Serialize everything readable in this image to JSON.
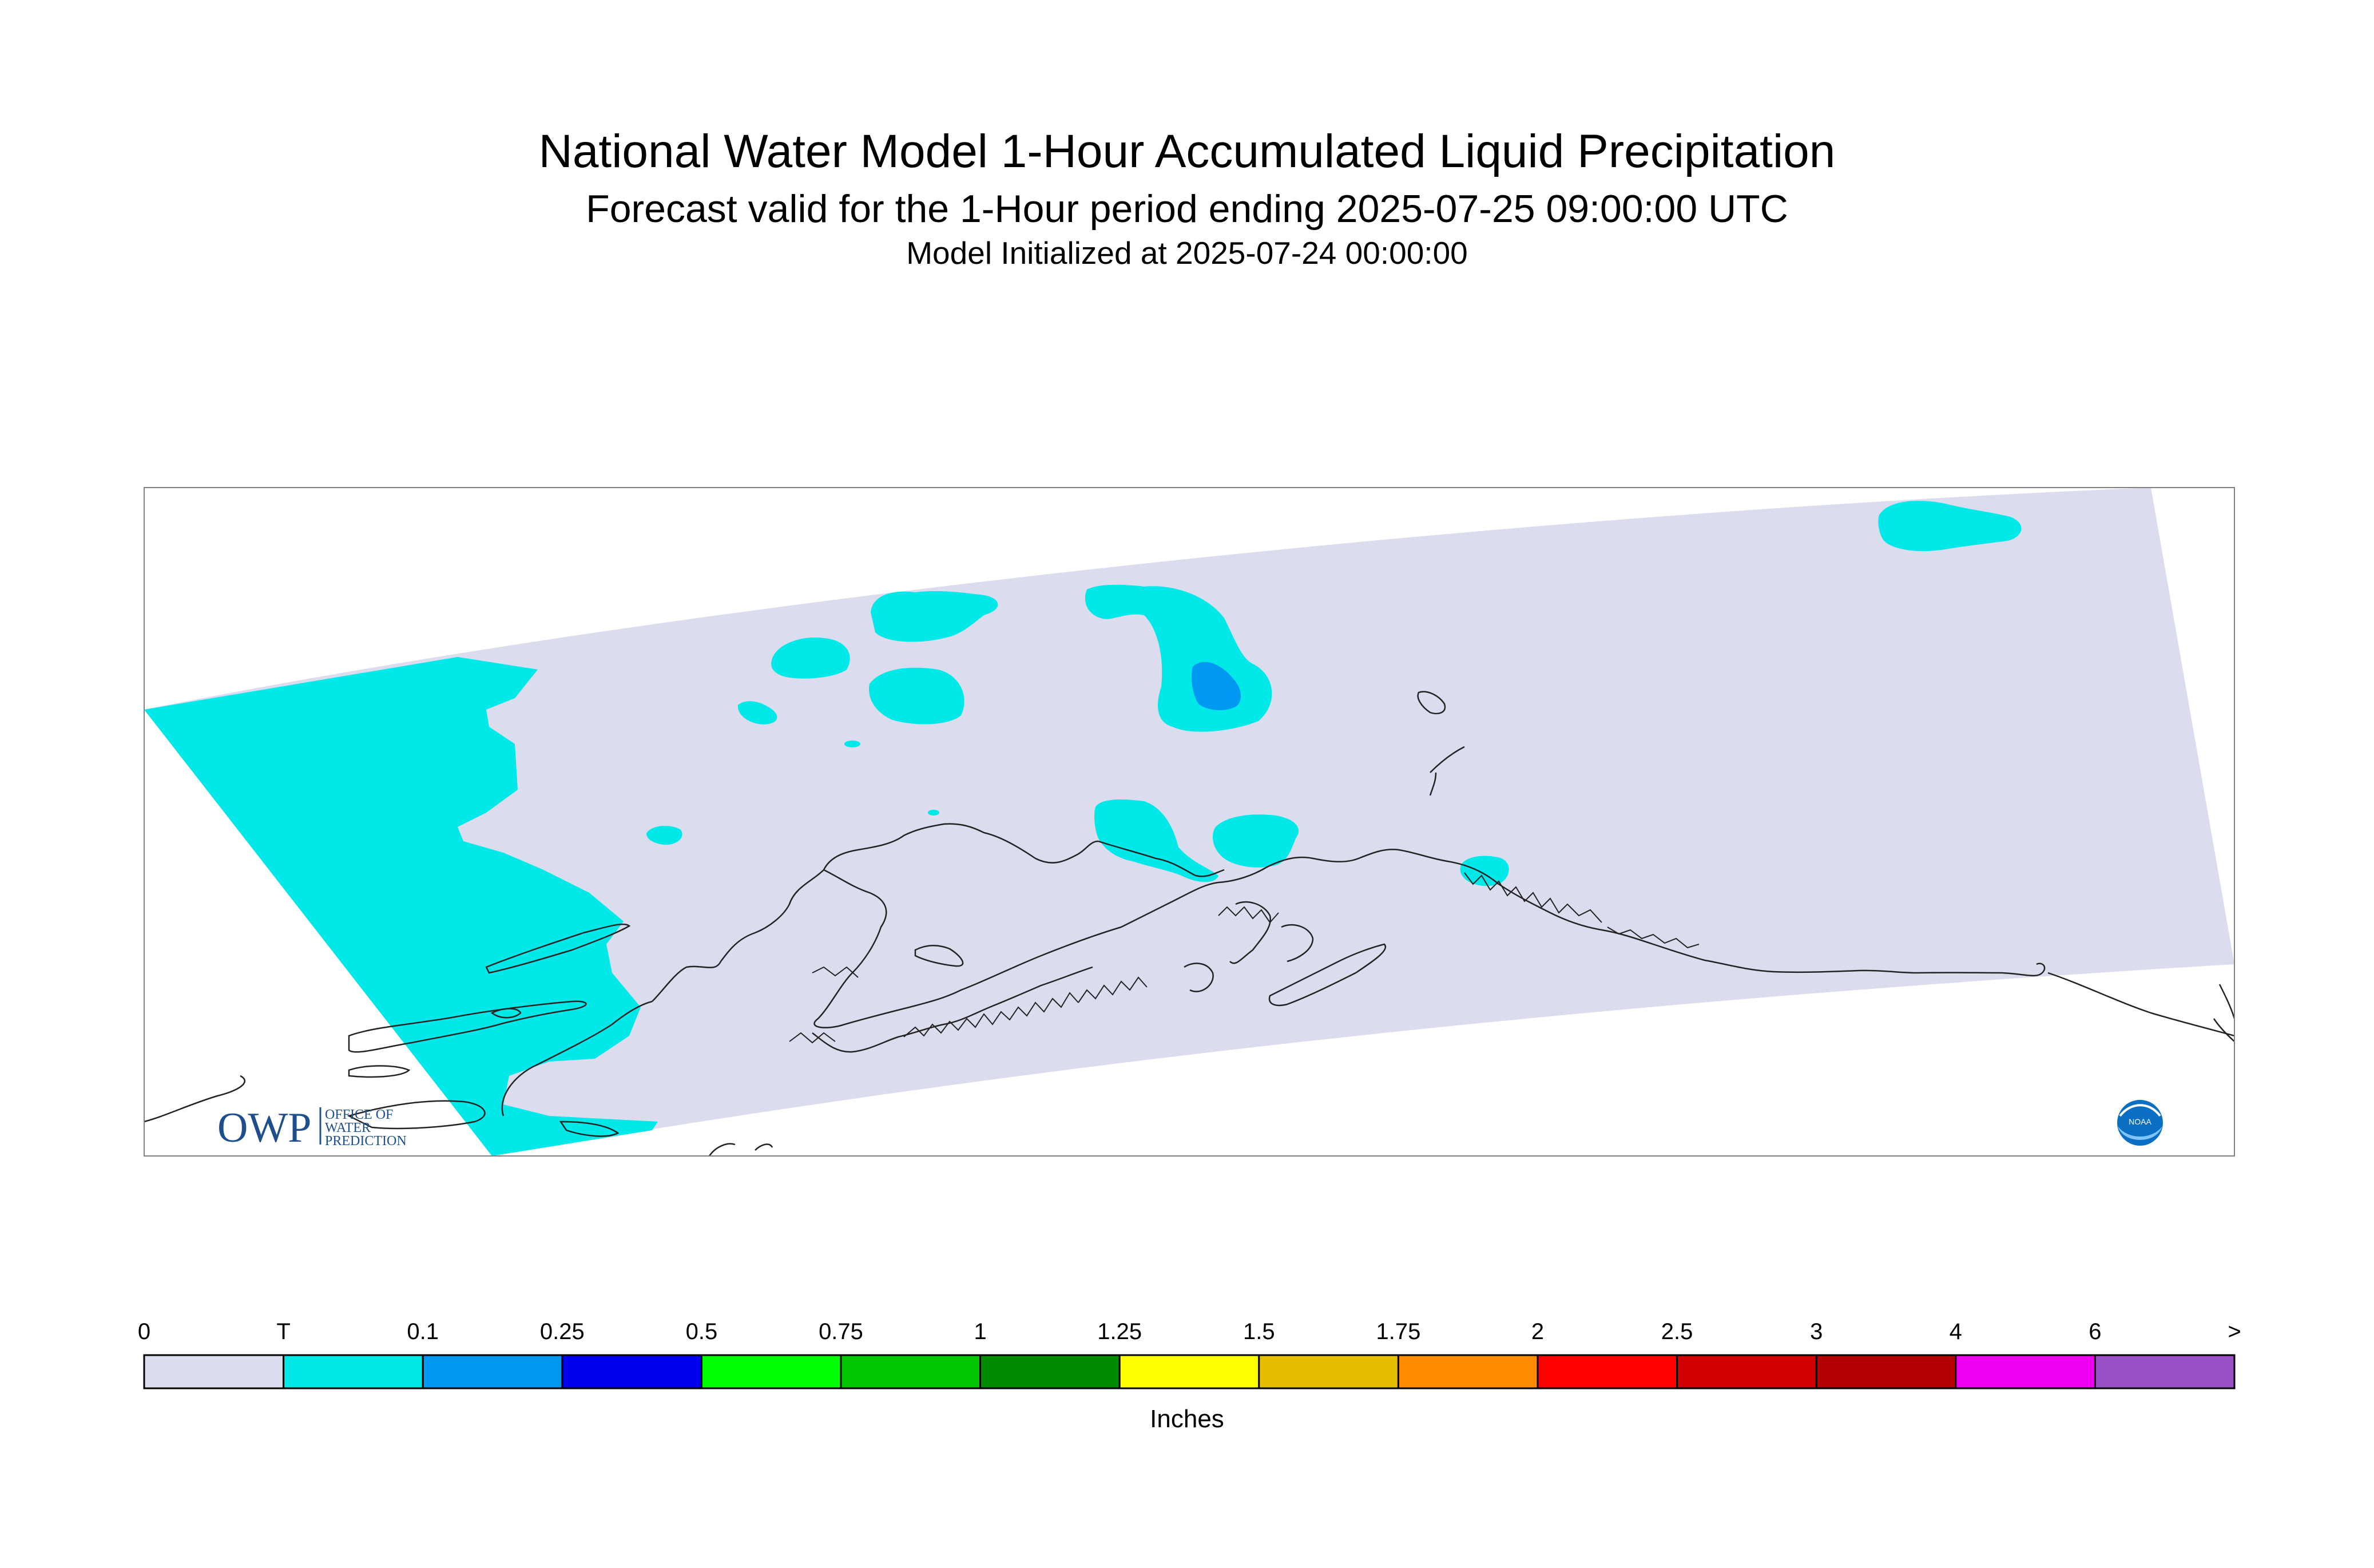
{
  "header": {
    "title": "National Water Model 1-Hour Accumulated Liquid Precipitation",
    "subtitle": "Forecast valid for the 1-Hour period ending 2025-07-25 09:00:00 UTC",
    "init": "Model Initialized at 2025-07-24 00:00:00"
  },
  "legend": {
    "unit": "Inches",
    "ticks": [
      "0",
      "T",
      "0.1",
      "0.25",
      "0.5",
      "0.75",
      "1",
      "1.25",
      "1.5",
      "1.75",
      "2",
      "2.5",
      "3",
      "4",
      "6",
      ">"
    ],
    "colors": [
      "#dcdcef",
      "#00e8e8",
      "#0098f0",
      "#0000f0",
      "#00ff00",
      "#00c800",
      "#008c00",
      "#ffff00",
      "#e6be00",
      "#ff8c00",
      "#ff0000",
      "#d20000",
      "#b40000",
      "#f000f0",
      "#9b50c8"
    ]
  },
  "map": {
    "domain_color": "#dcdcef",
    "trace_color": "#00e8e8",
    "light_color": "#0098f0",
    "coast_color": "#222222"
  },
  "logos": {
    "owp": {
      "mark": "OWP",
      "line1": "OFFICE OF",
      "line2": "WATER",
      "line3": "PREDICTION"
    },
    "noaa": {
      "label": "NOAA"
    }
  }
}
